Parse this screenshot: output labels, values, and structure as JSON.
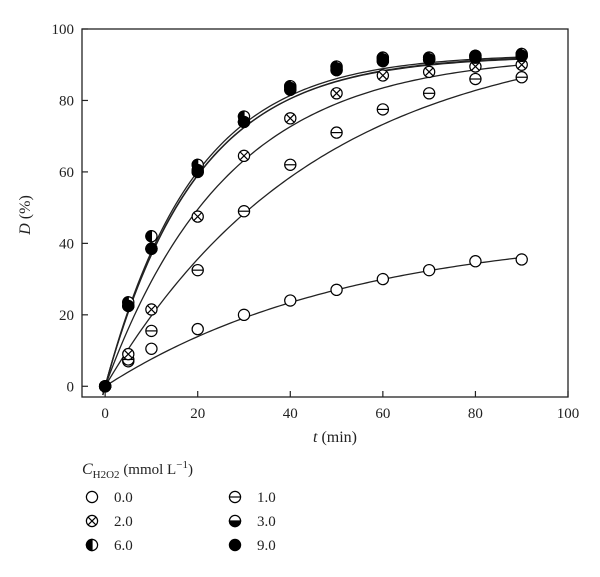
{
  "chart_data": {
    "type": "scatter",
    "title": "",
    "xlabel": "t (min)",
    "xlabel_var": "t",
    "xlabel_unit": " (min)",
    "ylabel": "D (%)",
    "ylabel_var": "D",
    "ylabel_unit": " (%)",
    "xlim": [
      0,
      100
    ],
    "ylim": [
      0,
      100
    ],
    "xticks": [
      "0",
      "20",
      "40",
      "60",
      "80",
      "100"
    ],
    "yticks": [
      "0",
      "20",
      "40",
      "60",
      "80",
      "100"
    ],
    "grid": false,
    "fitted_curves": true,
    "legend_title": "C",
    "legend_title_sub": "H2O2",
    "legend_title_unit": " (mmol L",
    "legend_title_exp": "−1",
    "legend_title_close": ")",
    "legend_position": "bottom-left",
    "x": [
      0,
      5,
      10,
      20,
      30,
      40,
      50,
      60,
      70,
      80,
      90
    ],
    "series": [
      {
        "name": "0.0",
        "marker": "open-circle",
        "values": [
          0,
          7,
          10.5,
          16,
          20,
          24,
          27,
          30,
          32.5,
          35,
          35.5
        ]
      },
      {
        "name": "1.0",
        "marker": "circle-horizontal-line",
        "values": [
          0,
          7.5,
          15.5,
          32.5,
          49,
          62,
          71,
          77.5,
          82,
          86,
          86.5
        ]
      },
      {
        "name": "2.0",
        "marker": "circle-cross",
        "values": [
          0,
          9,
          21.5,
          47.5,
          64.5,
          75,
          82,
          87,
          88,
          89.5,
          90
        ]
      },
      {
        "name": "3.0",
        "marker": "circle-bottom-half-filled",
        "values": [
          0,
          22.5,
          38.5,
          60,
          74,
          83,
          88.5,
          91,
          91.5,
          92,
          92.5
        ]
      },
      {
        "name": "6.0",
        "marker": "circle-left-half-filled",
        "values": [
          0,
          23.5,
          42,
          62,
          75.5,
          84,
          89.5,
          92,
          92,
          92.5,
          93
        ]
      },
      {
        "name": "9.0",
        "marker": "filled-circle",
        "values": [
          0,
          22.5,
          38.5,
          60.5,
          74,
          83.5,
          89,
          91.5,
          91.5,
          92.5,
          92.5
        ]
      }
    ],
    "curves": [
      {
        "name": "0.0",
        "plateau": 44,
        "rate": 0.019
      },
      {
        "name": "1.0",
        "plateau": 100,
        "rate": 0.022
      },
      {
        "name": "2.0",
        "plateau": 93,
        "rate": 0.038
      },
      {
        "name": "3.0",
        "plateau": 92.5,
        "rate": 0.051
      },
      {
        "name": "6.0",
        "plateau": 93,
        "rate": 0.052
      },
      {
        "name": "9.0",
        "plateau": 92.8,
        "rate": 0.0505
      }
    ]
  }
}
